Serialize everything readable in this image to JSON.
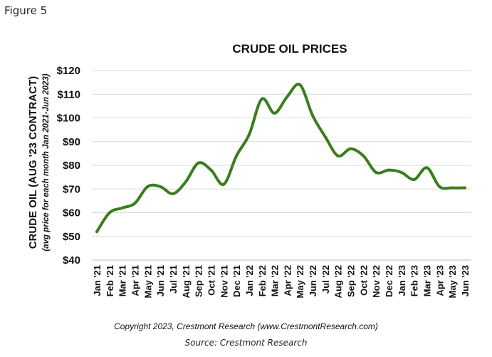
{
  "figure_label": "Figure 5",
  "copyright": "Copyright 2023, Crestmont Research (www.CrestmontResearch.com)",
  "source": "Source: Crestmont Research",
  "chart_data": {
    "type": "line",
    "title": "CRUDE OIL PRICES",
    "ylabel": "CRUDE OIL (AUG '23 CONTRACT)",
    "ylabel_sub": "(avg price for each month Jan 2021-Jun 2023)",
    "xlabel": "",
    "ylim": [
      40,
      120
    ],
    "y_ticks": [
      "$40",
      "$50",
      "$60",
      "$70",
      "$80",
      "$90",
      "$100",
      "$110",
      "$120"
    ],
    "grid": true,
    "line_color": "#3a7d1f",
    "categories": [
      "Jan '21",
      "Feb '21",
      "Mar '21",
      "Apr '21",
      "May '21",
      "Jun '21",
      "Jul '21",
      "Aug '21",
      "Sep '21",
      "Oct '21",
      "Nov '21",
      "Dec '21",
      "Jan '22",
      "Feb '22",
      "Mar '22",
      "Apr '22",
      "May '22",
      "Jun '22",
      "Jul '22",
      "Aug '22",
      "Sep '22",
      "Oct '22",
      "Nov '22",
      "Dec '22",
      "Jan '23",
      "Feb '23",
      "Mar '23",
      "Apr '23",
      "May '23",
      "Jun '23"
    ],
    "values": [
      52,
      60,
      62,
      64,
      71,
      71,
      68,
      73,
      81,
      78,
      72,
      84,
      93,
      108,
      102,
      109,
      114,
      101,
      92,
      84,
      87,
      84,
      77,
      78,
      77,
      74,
      79,
      71,
      70.5,
      70.5
    ]
  }
}
